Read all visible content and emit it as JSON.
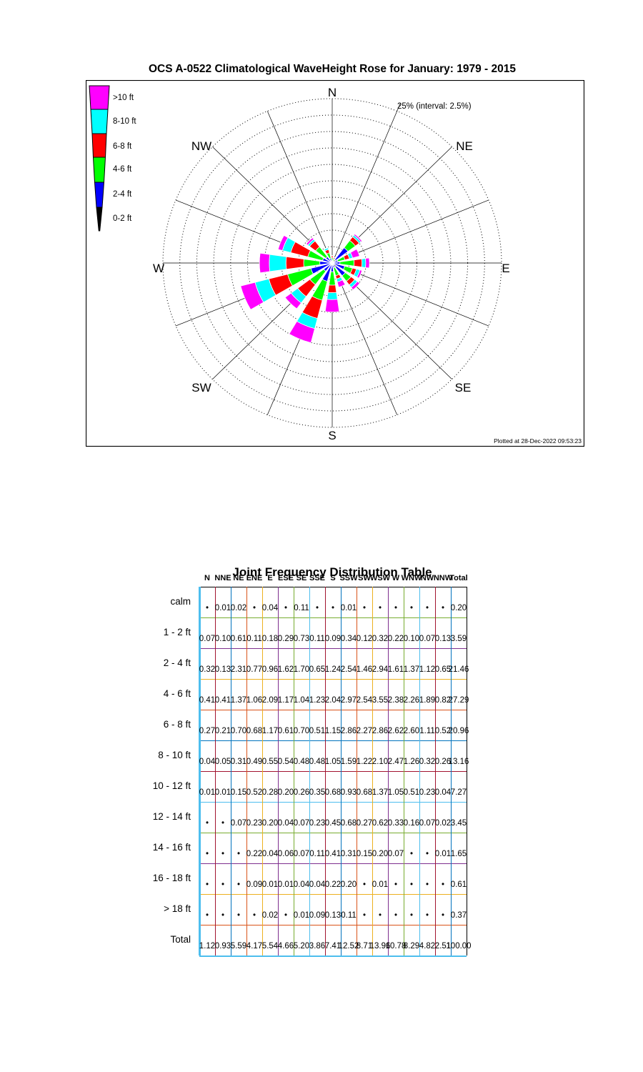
{
  "rose": {
    "title": "OCS A-0522 Climatological WaveHeight Rose for January: 1979 - 2015",
    "radial_label": "25% (interval: 2.5%)",
    "plotted_at": "Plotted at 28-Dec-2022 09:53:23",
    "compass": [
      "N",
      "NE",
      "E",
      "SE",
      "S",
      "SW",
      "W",
      "NW"
    ],
    "legend": [
      {
        "label": ">10 ft",
        "color": "#FF00FF"
      },
      {
        "label": "8-10 ft",
        "color": "#00FFFF"
      },
      {
        "label": "6-8 ft",
        "color": "#FF0000"
      },
      {
        "label": "4-6 ft",
        "color": "#00FF00"
      },
      {
        "label": "2-4 ft",
        "color": "#0000FF"
      },
      {
        "label": "0-2 ft",
        "color": "#000000"
      }
    ]
  },
  "chart_data": [
    {
      "type": "polar_stacked_bar_rose",
      "title": "OCS A-0522 Climatological WaveHeight Rose for January: 1979 - 2015",
      "units": "percent frequency of wave direction",
      "rmax": 25,
      "ring_interval": 2.5,
      "rings": 10,
      "radial_label": "25% (interval: 2.5%)",
      "directions": [
        "N",
        "NNE",
        "NE",
        "ENE",
        "E",
        "ESE",
        "SE",
        "SSE",
        "S",
        "SSW",
        "SW",
        "WSW",
        "W",
        "WNW",
        "NW",
        "NNW"
      ],
      "series": [
        {
          "name": "0-2 ft",
          "color": "#000000",
          "values": [
            0.07,
            0.1,
            0.61,
            0.11,
            0.18,
            0.29,
            0.73,
            0.11,
            0.09,
            0.34,
            0.12,
            0.32,
            0.22,
            0.1,
            0.07,
            0.13
          ]
        },
        {
          "name": "2-4 ft",
          "color": "#0000FF",
          "values": [
            0.32,
            0.13,
            2.31,
            0.77,
            0.96,
            1.62,
            1.7,
            0.65,
            1.24,
            2.54,
            1.46,
            2.94,
            1.61,
            1.37,
            1.12,
            0.65
          ]
        },
        {
          "name": "4-6 ft",
          "color": "#00FF00",
          "values": [
            0.41,
            0.41,
            1.37,
            1.06,
            2.09,
            1.17,
            1.04,
            1.23,
            2.04,
            2.97,
            2.54,
            3.55,
            2.38,
            2.26,
            1.89,
            0.82
          ]
        },
        {
          "name": "6-8 ft",
          "color": "#FF0000",
          "values": [
            0.27,
            0.21,
            0.7,
            0.68,
            1.17,
            0.61,
            0.7,
            0.51,
            1.15,
            2.86,
            2.27,
            2.86,
            2.62,
            2.6,
            1.11,
            0.52
          ]
        },
        {
          "name": "8-10 ft",
          "color": "#00FFFF",
          "values": [
            0.04,
            0.05,
            0.31,
            0.49,
            0.55,
            0.54,
            0.48,
            0.48,
            1.05,
            1.59,
            1.22,
            2.1,
            2.47,
            1.26,
            0.32,
            0.26
          ]
        },
        {
          "name": ">10 ft",
          "color": "#FF00FF",
          "values": [
            0.01,
            0.01,
            0.22,
            1.06,
            0.55,
            0.31,
            0.45,
            0.82,
            1.89,
            2.23,
            1.1,
            2.2,
            1.45,
            0.67,
            0.3,
            0.07
          ]
        }
      ]
    },
    {
      "type": "table",
      "title": "Joint Frequency Distribution Table",
      "columns": [
        "N",
        "NNE",
        "NE",
        "ENE",
        "E",
        "ESE",
        "SE",
        "SSE",
        "S",
        "SSW",
        "SW",
        "WSW",
        "W",
        "WNW",
        "NW",
        "NNW",
        "Total"
      ],
      "rows": [
        {
          "label": "calm",
          "values": [
            "•",
            "0.01",
            "0.02",
            "•",
            "0.04",
            "•",
            "0.11",
            "•",
            "•",
            "0.01",
            "•",
            "•",
            "•",
            "•",
            "•",
            "•",
            "0.20"
          ]
        },
        {
          "label": "1 - 2 ft",
          "values": [
            "0.07",
            "0.10",
            "0.61",
            "0.11",
            "0.18",
            "0.29",
            "0.73",
            "0.11",
            "0.09",
            "0.34",
            "0.12",
            "0.32",
            "0.22",
            "0.10",
            "0.07",
            "0.13",
            "3.59"
          ]
        },
        {
          "label": "2 - 4 ft",
          "values": [
            "0.32",
            "0.13",
            "2.31",
            "0.77",
            "0.96",
            "1.62",
            "1.70",
            "0.65",
            "1.24",
            "2.54",
            "1.46",
            "2.94",
            "1.61",
            "1.37",
            "1.12",
            "0.65",
            "21.46"
          ]
        },
        {
          "label": "4 - 6 ft",
          "values": [
            "0.41",
            "0.41",
            "1.37",
            "1.06",
            "2.09",
            "1.17",
            "1.04",
            "1.23",
            "2.04",
            "2.97",
            "2.54",
            "3.55",
            "2.38",
            "2.26",
            "1.89",
            "0.82",
            "27.29"
          ]
        },
        {
          "label": "6 - 8 ft",
          "values": [
            "0.27",
            "0.21",
            "0.70",
            "0.68",
            "1.17",
            "0.61",
            "0.70",
            "0.51",
            "1.15",
            "2.86",
            "2.27",
            "2.86",
            "2.62",
            "2.60",
            "1.11",
            "0.52",
            "20.96"
          ]
        },
        {
          "label": "8 - 10 ft",
          "values": [
            "0.04",
            "0.05",
            "0.31",
            "0.49",
            "0.55",
            "0.54",
            "0.48",
            "0.48",
            "1.05",
            "1.59",
            "1.22",
            "2.10",
            "2.47",
            "1.26",
            "0.32",
            "0.26",
            "13.16"
          ]
        },
        {
          "label": "10 - 12 ft",
          "values": [
            "0.01",
            "0.01",
            "0.15",
            "0.52",
            "0.28",
            "0.20",
            "0.26",
            "0.35",
            "0.68",
            "0.93",
            "0.68",
            "1.37",
            "1.05",
            "0.51",
            "0.23",
            "0.04",
            "7.27"
          ]
        },
        {
          "label": "12 - 14 ft",
          "values": [
            "•",
            "•",
            "0.07",
            "0.23",
            "0.20",
            "0.04",
            "0.07",
            "0.23",
            "0.45",
            "0.68",
            "0.27",
            "0.62",
            "0.33",
            "0.16",
            "0.07",
            "0.02",
            "3.45"
          ]
        },
        {
          "label": "14 - 16 ft",
          "values": [
            "•",
            "•",
            "•",
            "0.22",
            "0.04",
            "0.06",
            "0.07",
            "0.11",
            "0.41",
            "0.31",
            "0.15",
            "0.20",
            "0.07",
            "•",
            "•",
            "0.01",
            "1.65"
          ]
        },
        {
          "label": "16 - 18 ft",
          "values": [
            "•",
            "•",
            "•",
            "0.09",
            "0.01",
            "0.01",
            "0.04",
            "0.04",
            "0.22",
            "0.20",
            "•",
            "0.01",
            "•",
            "•",
            "•",
            "•",
            "0.61"
          ]
        },
        {
          "label": "> 18 ft",
          "values": [
            "•",
            "•",
            "•",
            "•",
            "0.02",
            "•",
            "0.01",
            "0.09",
            "0.13",
            "0.11",
            "•",
            "•",
            "•",
            "•",
            "•",
            "•",
            "0.37"
          ]
        },
        {
          "label": "Total",
          "values": [
            "1.12",
            "0.93",
            "5.59",
            "4.17",
            "5.54",
            "4.66",
            "5.20",
            "3.86",
            "7.41",
            "12.52",
            "8.71",
            "13.96",
            "10.78",
            "8.29",
            "4.82",
            "2.51",
            "100.00"
          ]
        }
      ],
      "grid_v_palette": [
        "#A2142F",
        "#0072BD",
        "#D95319",
        "#EDB120",
        "#7E2F8E",
        "#77AC30",
        "#4DBEEE"
      ],
      "grid_h_palette": [
        "#77AC30",
        "#7E2F8E",
        "#EDB120",
        "#D95319",
        "#0072BD",
        "#A2142F",
        "#4DBEEE"
      ],
      "frame_left_color": "#4DBEEE",
      "frame_bottom_color": "#4DBEEE",
      "frame_right_color": "#000000",
      "frame_top_color": "#000000"
    }
  ]
}
